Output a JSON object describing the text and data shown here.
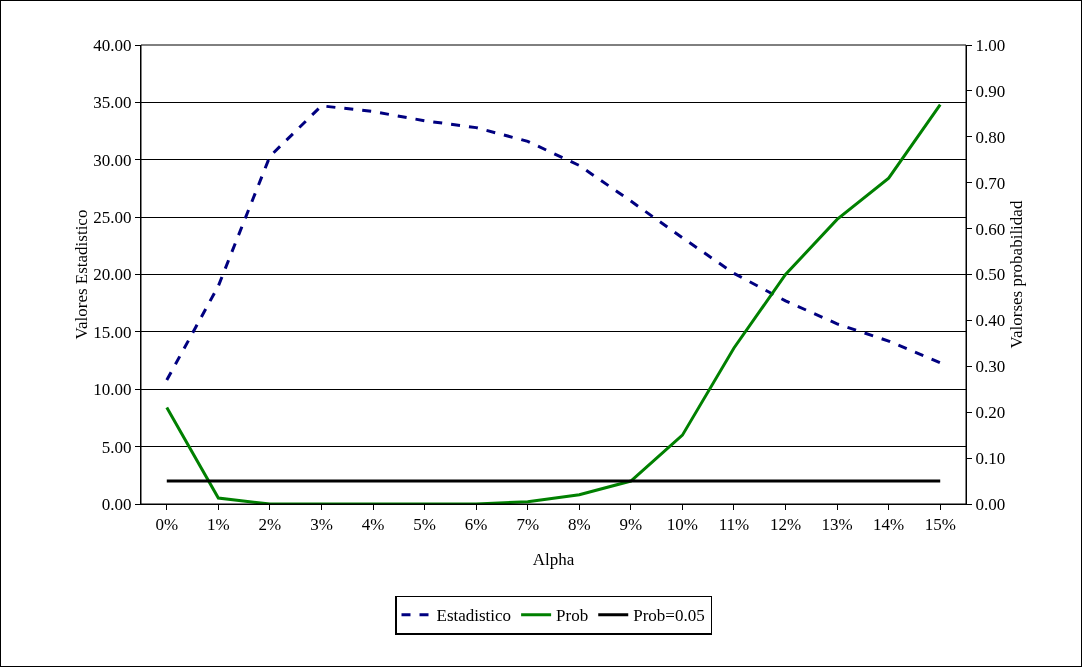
{
  "chart_data": {
    "type": "line",
    "xlabel": "Alpha",
    "ylabel": "Valores Estadistico",
    "y2label": "Valorses probabilidad",
    "categories": [
      "0%",
      "1%",
      "2%",
      "3%",
      "4%",
      "5%",
      "6%",
      "7%",
      "8%",
      "9%",
      "10%",
      "11%",
      "12%",
      "13%",
      "14%",
      "15%"
    ],
    "series": [
      {
        "name": "Estadistico",
        "color": "#000080",
        "line_style": "dashed",
        "values": [
          10.8,
          19.0,
          30.3,
          34.7,
          34.2,
          33.4,
          32.8,
          31.6,
          29.5,
          26.4,
          23.2,
          20.1,
          17.7,
          15.7,
          14.2,
          12.3
        ]
      },
      {
        "name": "Prob",
        "color": "#008000",
        "line_style": "solid",
        "axis": "y2",
        "values": [
          0.21,
          0.013,
          0.0,
          0.0,
          0.0,
          0.0,
          0.0,
          0.005,
          0.02,
          0.05,
          0.15,
          0.34,
          0.5,
          0.62,
          0.71,
          0.87
        ]
      },
      {
        "name": "Prob=0.05",
        "color": "#000000",
        "line_style": "solid",
        "axis": "y2",
        "values": [
          0.05,
          0.05,
          0.05,
          0.05,
          0.05,
          0.05,
          0.05,
          0.05,
          0.05,
          0.05,
          0.05,
          0.05,
          0.05,
          0.05,
          0.05,
          0.05
        ]
      }
    ],
    "ylim": [
      0,
      40
    ],
    "yticks": [
      {
        "value": 0,
        "label": "0.00"
      },
      {
        "value": 5,
        "label": "5.00"
      },
      {
        "value": 10,
        "label": "10.00"
      },
      {
        "value": 15,
        "label": "15.00"
      },
      {
        "value": 20,
        "label": "20.00"
      },
      {
        "value": 25,
        "label": "25.00"
      },
      {
        "value": 30,
        "label": "30.00"
      },
      {
        "value": 35,
        "label": "35.00"
      },
      {
        "value": 40,
        "label": "40.00"
      }
    ],
    "y2lim": [
      0,
      1
    ],
    "y2ticks": [
      {
        "value": 0,
        "label": "0.00"
      },
      {
        "value": 0.1,
        "label": "0.10"
      },
      {
        "value": 0.2,
        "label": "0.20"
      },
      {
        "value": 0.3,
        "label": "0.30"
      },
      {
        "value": 0.4,
        "label": "0.40"
      },
      {
        "value": 0.5,
        "label": "0.50"
      },
      {
        "value": 0.6,
        "label": "0.60"
      },
      {
        "value": 0.7,
        "label": "0.70"
      },
      {
        "value": 0.8,
        "label": "0.80"
      },
      {
        "value": 0.9,
        "label": "0.90"
      },
      {
        "value": 1,
        "label": "1.00"
      }
    ],
    "grid": "y",
    "legend": "bottom",
    "marker": "none"
  }
}
